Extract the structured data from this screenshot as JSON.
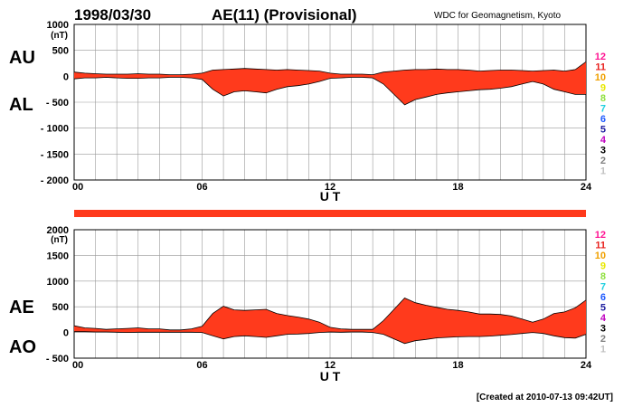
{
  "header": {
    "date": "1998/03/30",
    "title": "AE(11) (Provisional)",
    "source": "WDC for Geomagnetism, Kyoto"
  },
  "footer": {
    "created": "[Created at 2010-07-13 09:42UT]"
  },
  "colors": {
    "fill": "#ff3a1c",
    "line": "#000000",
    "grid": "#999999",
    "bar": "#ff3a1c"
  },
  "legend": {
    "numbers": [
      "12",
      "11",
      "10",
      "9",
      "8",
      "7",
      "6",
      "5",
      "4",
      "3",
      "2",
      "1"
    ],
    "colors": [
      "#ff1493",
      "#e8201c",
      "#f0a000",
      "#e8e800",
      "#90e040",
      "#20d0e0",
      "#1e5aff",
      "#2020a0",
      "#c000c0",
      "#000000",
      "#808080",
      "#c0c0c0"
    ]
  },
  "chart_data": [
    {
      "type": "area",
      "name": "AU/AL",
      "xlabel": "U T",
      "unit_label": "(nT)",
      "side_labels": [
        "AU",
        "AL"
      ],
      "xlim": [
        0,
        24
      ],
      "ylim": [
        -2000,
        1000
      ],
      "xticks": [
        "00",
        "06",
        "12",
        "18",
        "24"
      ],
      "yticks": [
        "1000",
        "500",
        "0",
        "- 500",
        "- 1000",
        "- 1500",
        "- 2000"
      ],
      "x": [
        0,
        0.5,
        1,
        1.5,
        2,
        2.5,
        3,
        3.5,
        4,
        4.5,
        5,
        5.5,
        6,
        6.5,
        7,
        7.5,
        8,
        8.5,
        9,
        9.5,
        10,
        10.5,
        11,
        11.5,
        12,
        12.5,
        13,
        13.5,
        14,
        14.5,
        15,
        15.5,
        16,
        16.5,
        17,
        17.5,
        18,
        18.5,
        19,
        19.5,
        20,
        20.5,
        21,
        21.5,
        22,
        22.5,
        23,
        23.5,
        24
      ],
      "series": [
        {
          "name": "AU",
          "values": [
            80,
            60,
            50,
            40,
            40,
            40,
            50,
            40,
            40,
            30,
            30,
            40,
            60,
            120,
            130,
            140,
            150,
            140,
            130,
            120,
            130,
            120,
            110,
            100,
            60,
            40,
            40,
            40,
            30,
            80,
            100,
            120,
            130,
            130,
            140,
            130,
            130,
            120,
            100,
            110,
            120,
            120,
            110,
            100,
            110,
            120,
            100,
            130,
            280
          ]
        },
        {
          "name": "AL",
          "values": [
            -50,
            -30,
            -30,
            -20,
            -30,
            -40,
            -40,
            -30,
            -30,
            -20,
            -20,
            -30,
            -60,
            -250,
            -380,
            -300,
            -280,
            -300,
            -320,
            -250,
            -200,
            -180,
            -150,
            -100,
            -40,
            -30,
            -20,
            -20,
            -30,
            -150,
            -350,
            -550,
            -450,
            -400,
            -350,
            -320,
            -300,
            -280,
            -260,
            -250,
            -230,
            -200,
            -150,
            -100,
            -150,
            -250,
            -300,
            -350,
            -350
          ]
        }
      ]
    },
    {
      "type": "area",
      "name": "AE/AO",
      "xlabel": "U T",
      "unit_label": "(nT)",
      "side_labels": [
        "AE",
        "AO"
      ],
      "xlim": [
        0,
        24
      ],
      "ylim": [
        -500,
        2000
      ],
      "xticks": [
        "00",
        "06",
        "12",
        "18",
        "24"
      ],
      "yticks": [
        "2000",
        "1500",
        "1000",
        "500",
        "0",
        "- 500"
      ],
      "x": [
        0,
        0.5,
        1,
        1.5,
        2,
        2.5,
        3,
        3.5,
        4,
        4.5,
        5,
        5.5,
        6,
        6.5,
        7,
        7.5,
        8,
        8.5,
        9,
        9.5,
        10,
        10.5,
        11,
        11.5,
        12,
        12.5,
        13,
        13.5,
        14,
        14.5,
        15,
        15.5,
        16,
        16.5,
        17,
        17.5,
        18,
        18.5,
        19,
        19.5,
        20,
        20.5,
        21,
        21.5,
        22,
        22.5,
        23,
        23.5,
        24
      ],
      "series": [
        {
          "name": "AE",
          "values": [
            130,
            90,
            80,
            60,
            70,
            80,
            90,
            70,
            70,
            50,
            50,
            70,
            120,
            370,
            510,
            440,
            430,
            440,
            450,
            370,
            330,
            300,
            260,
            200,
            100,
            70,
            60,
            60,
            60,
            230,
            450,
            670,
            580,
            530,
            490,
            450,
            430,
            400,
            360,
            360,
            350,
            320,
            260,
            200,
            260,
            370,
            400,
            480,
            630
          ]
        },
        {
          "name": "AO",
          "values": [
            15,
            15,
            10,
            10,
            5,
            0,
            5,
            5,
            5,
            5,
            5,
            5,
            0,
            -65,
            -125,
            -80,
            -65,
            -80,
            -95,
            -65,
            -35,
            -30,
            -20,
            0,
            10,
            5,
            10,
            10,
            0,
            -35,
            -125,
            -215,
            -160,
            -135,
            -105,
            -95,
            -85,
            -80,
            -80,
            -70,
            -55,
            -40,
            -20,
            0,
            -20,
            -65,
            -100,
            -110,
            -35
          ]
        }
      ]
    }
  ]
}
